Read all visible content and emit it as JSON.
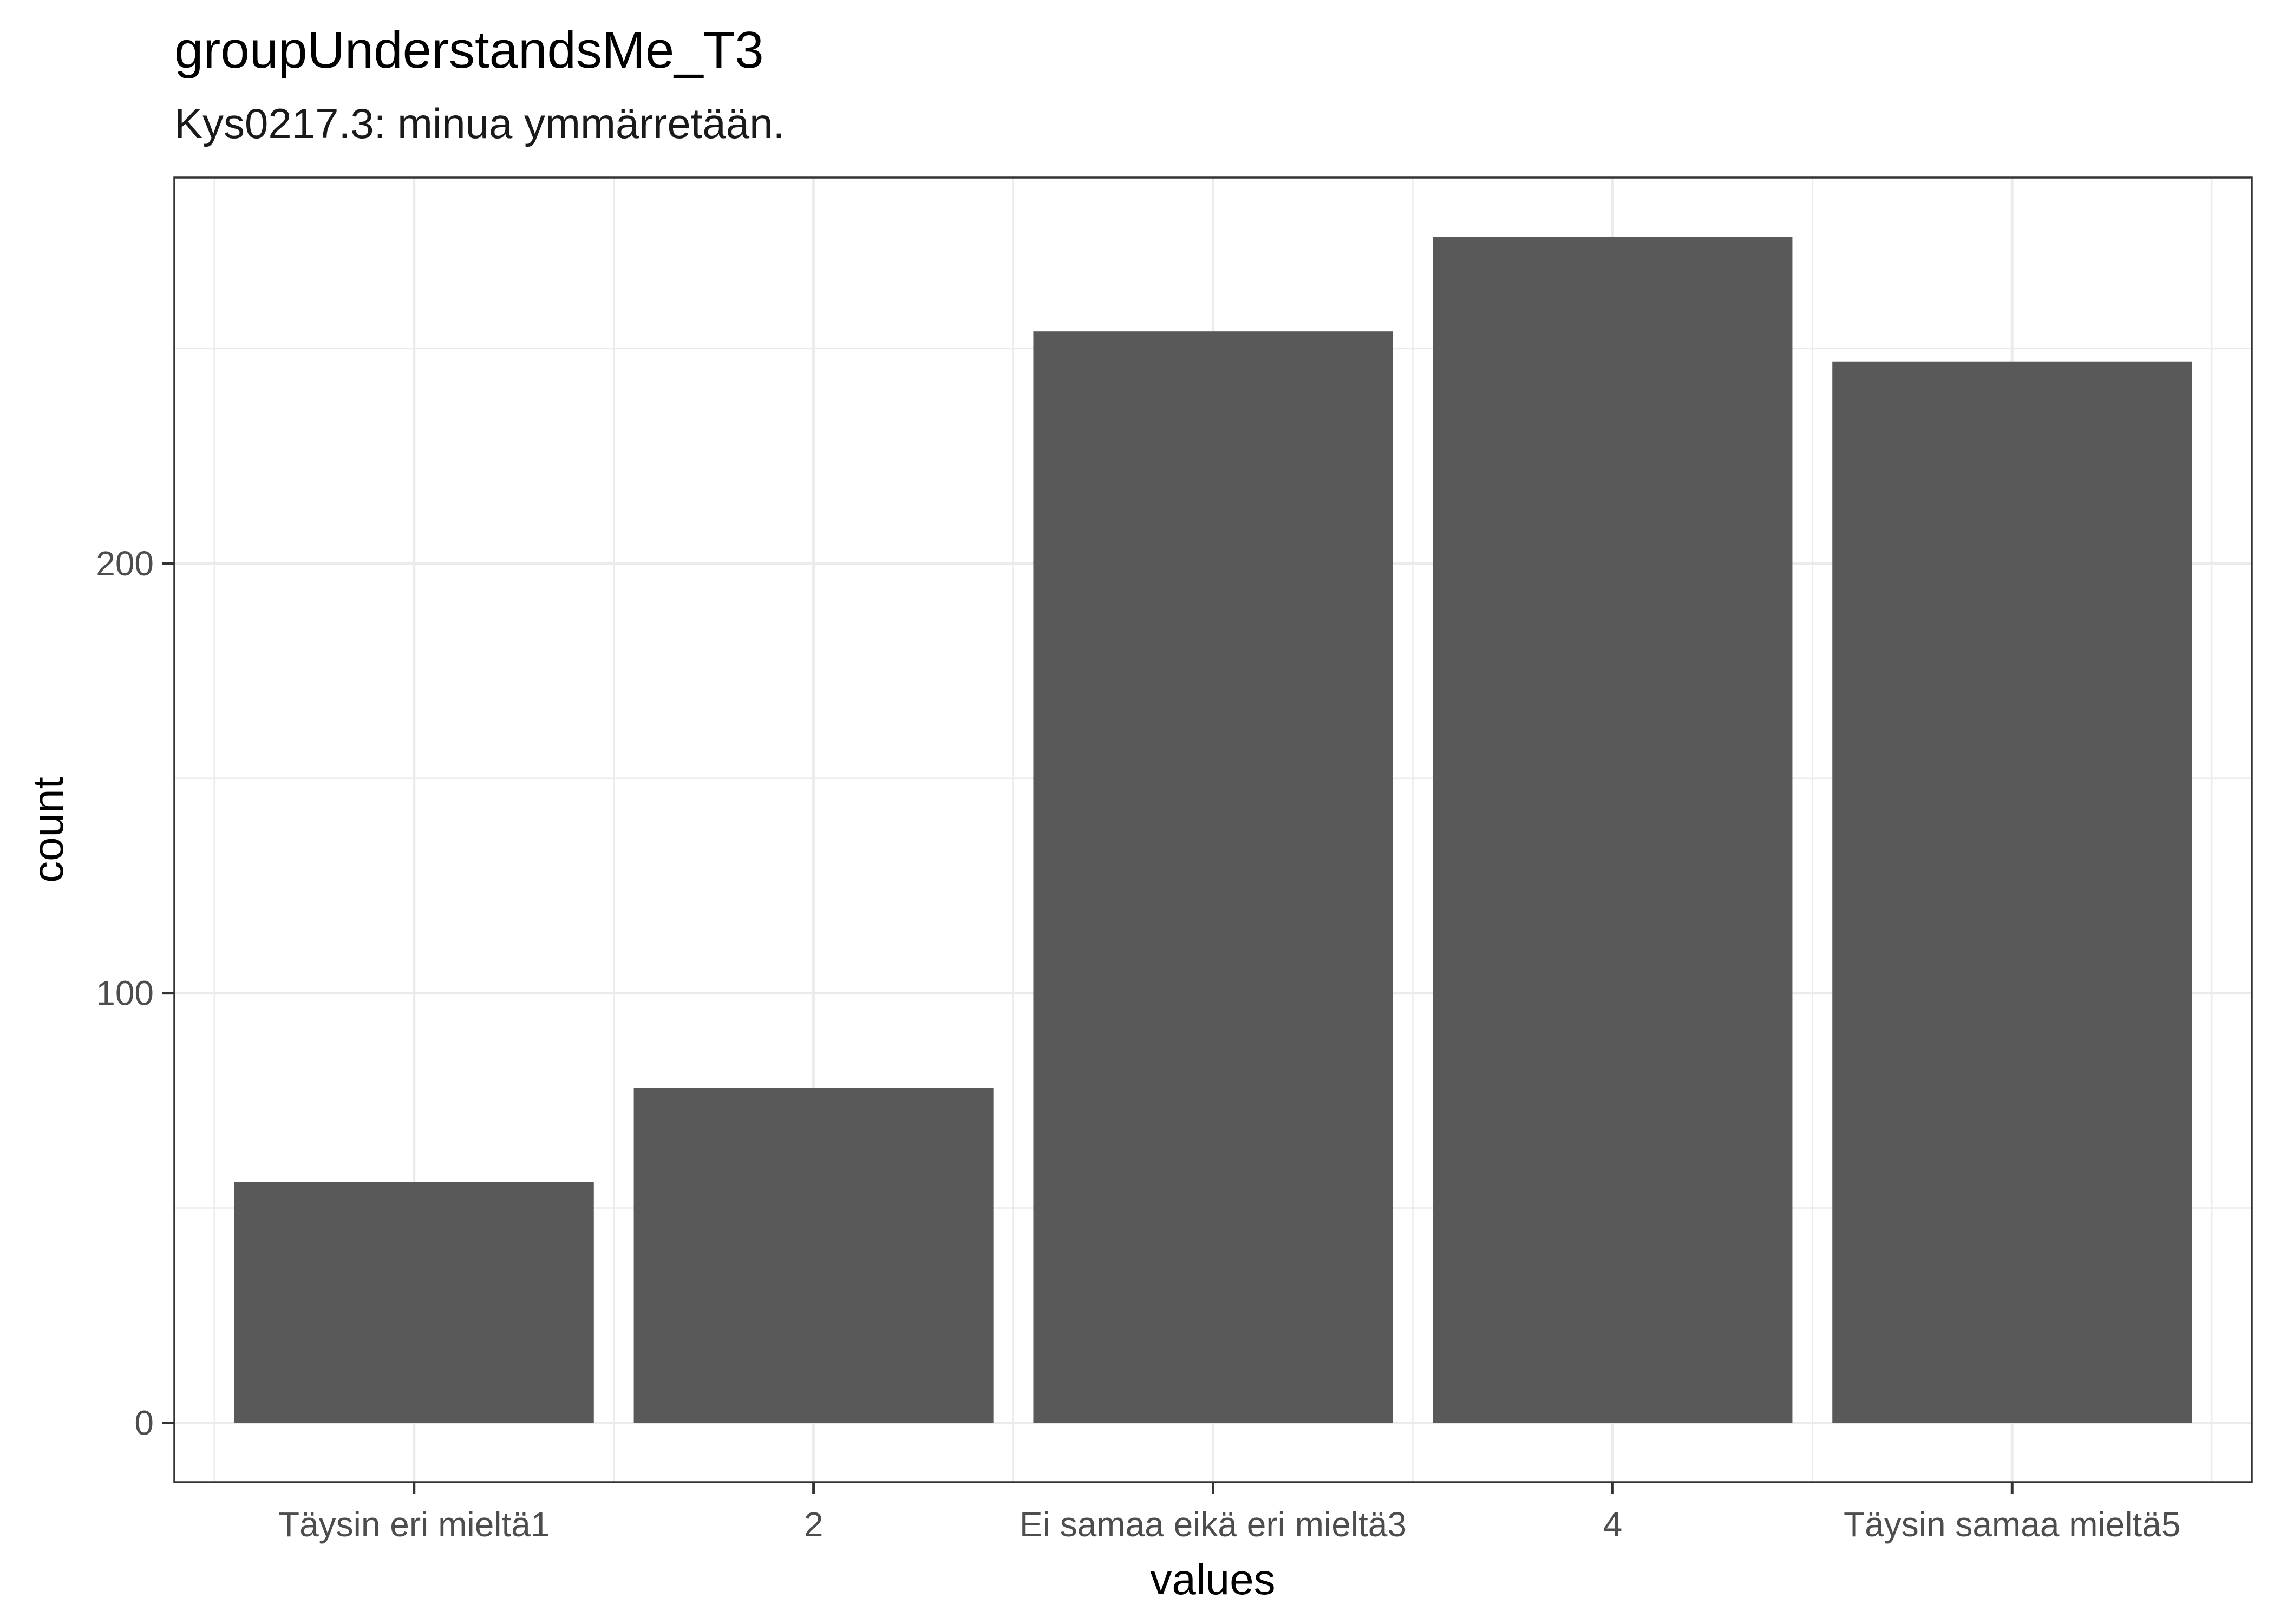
{
  "chart_data": {
    "type": "bar",
    "title": "groupUnderstandsMe_T3",
    "subtitle": "Kys0217.3: minua ymmärretään.",
    "xlabel": "values",
    "ylabel": "count",
    "categories": [
      "Täysin eri mieltä1",
      "2",
      "Ei samaa eikä eri mieltä3",
      "4",
      "Täysin samaa mieltä5"
    ],
    "values": [
      56,
      78,
      254,
      276,
      247
    ],
    "ylim": [
      -13.8,
      289.8
    ],
    "yticks": [
      0,
      100,
      200
    ],
    "grid": true,
    "legend": "none",
    "bar_color": "#595959",
    "grid_color": "#ebebeb"
  }
}
